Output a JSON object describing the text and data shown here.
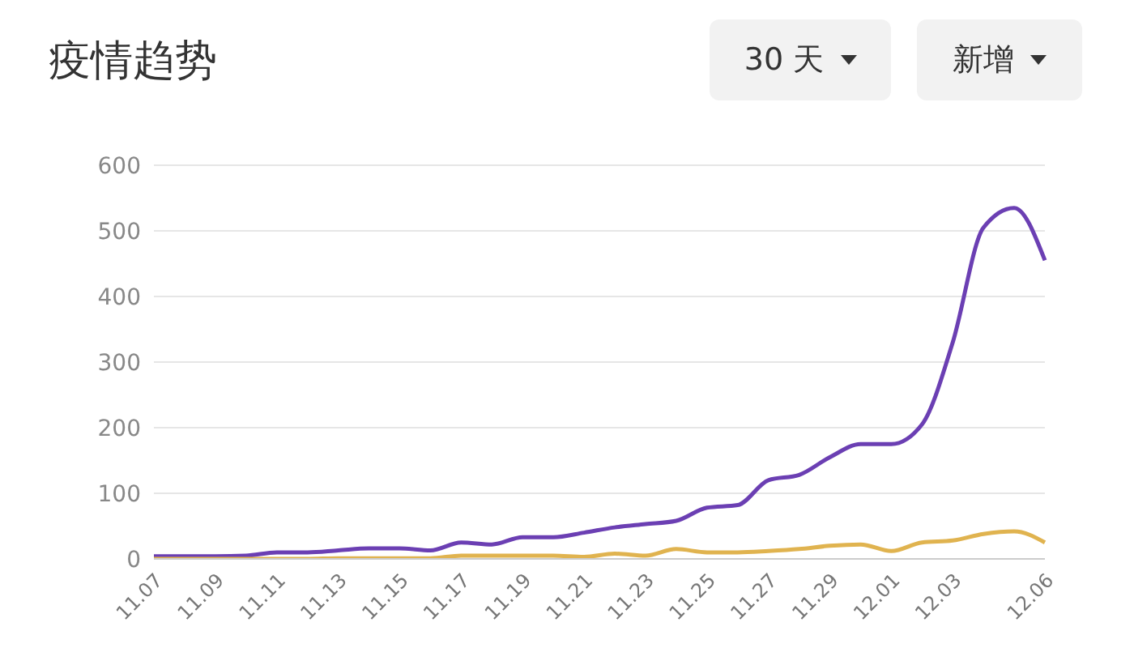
{
  "chart_data": {
    "type": "line",
    "title": "疫情趋势",
    "annotations": [
      "30 天",
      "新增"
    ],
    "categories": [
      "11.07",
      null,
      "11.09",
      null,
      "11.11",
      null,
      "11.13",
      null,
      "11.15",
      null,
      "11.17",
      null,
      "11.19",
      null,
      "11.21",
      null,
      "11.23",
      null,
      "11.25",
      null,
      "11.27",
      null,
      "11.29",
      null,
      "12.01",
      null,
      "12.03",
      null,
      null,
      "12.06"
    ],
    "series": [
      {
        "color": "#6b3fb3",
        "values": [
          4,
          4,
          4,
          5,
          10,
          10,
          13,
          16,
          16,
          13,
          25,
          22,
          33,
          33,
          40,
          48,
          53,
          58,
          78,
          82,
          120,
          128,
          155,
          175,
          175,
          205,
          330,
          505,
          535,
          455
        ]
      },
      {
        "color": "#e0b34f",
        "values": [
          0,
          0,
          0,
          0,
          0,
          0,
          1,
          1,
          1,
          1,
          5,
          5,
          5,
          5,
          3,
          8,
          5,
          15,
          10,
          10,
          12,
          15,
          20,
          22,
          12,
          25,
          28,
          38,
          42,
          25
        ]
      }
    ],
    "ylim": [
      0,
      600
    ],
    "yticks": [
      0,
      100,
      200,
      300,
      400,
      500,
      600
    ],
    "grid": "y",
    "marker": "none",
    "line_style": "solid"
  }
}
